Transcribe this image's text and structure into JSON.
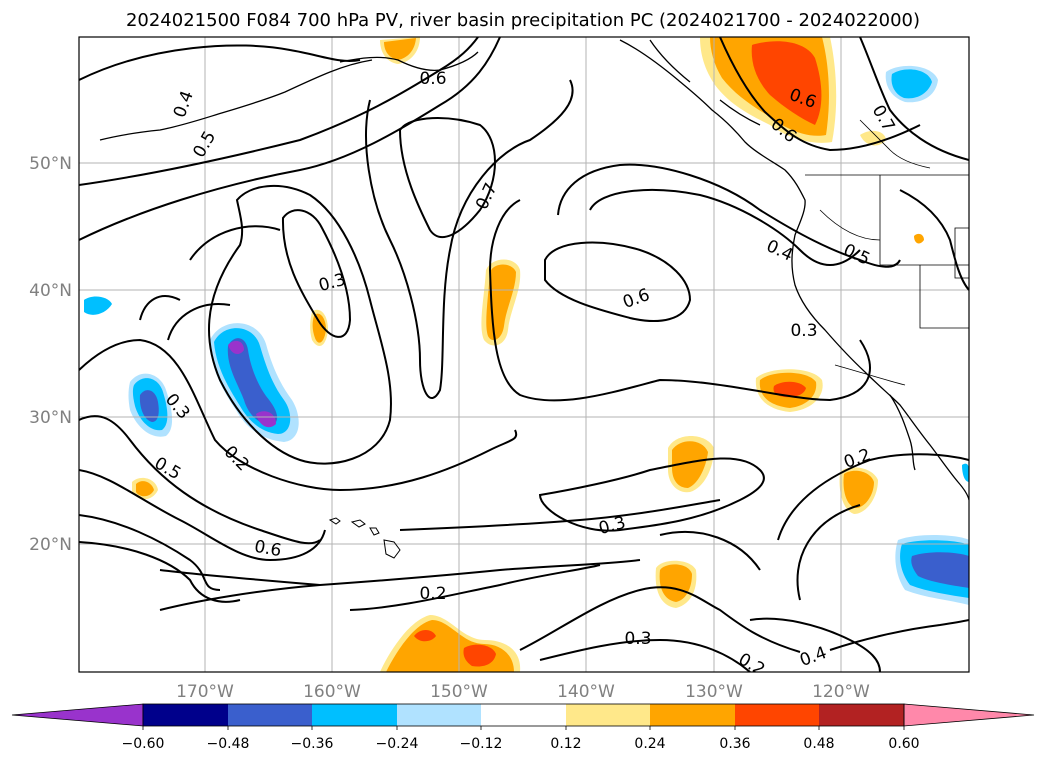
{
  "title": "2024021500 F084 700 hPa PV, river basin precipitation PC (2024021700 - 2024022000)",
  "map": {
    "lat_labels": [
      "50°N",
      "40°N",
      "30°N",
      "20°N"
    ],
    "lon_labels": [
      "170°W",
      "160°W",
      "150°W",
      "140°W",
      "130°W",
      "120°W"
    ],
    "contour_labels": [
      {
        "text": "0.6"
      },
      {
        "text": "0.4"
      },
      {
        "text": "0.5"
      },
      {
        "text": "0.7"
      },
      {
        "text": "0.6"
      },
      {
        "text": "0.6"
      },
      {
        "text": "0.7"
      },
      {
        "text": "0.4"
      },
      {
        "text": "0.5"
      },
      {
        "text": "0.3"
      },
      {
        "text": "0.6"
      },
      {
        "text": "0.3"
      },
      {
        "text": "0.3"
      },
      {
        "text": "0.2"
      },
      {
        "text": "0.5"
      },
      {
        "text": "0.2"
      },
      {
        "text": "0.3"
      },
      {
        "text": "0.6"
      },
      {
        "text": "0.2"
      },
      {
        "text": "0.3"
      },
      {
        "text": "0.4"
      },
      {
        "text": "0.2"
      }
    ]
  },
  "colorbar": {
    "ticks": [
      "−0.60",
      "−0.48",
      "−0.36",
      "−0.24",
      "−0.12",
      "0.12",
      "0.24",
      "0.36",
      "0.48",
      "0.60"
    ],
    "colors": [
      "#9933cc",
      "#00008b",
      "#3a5fcd",
      "#00bfff",
      "#b0e2ff",
      "#ffffff",
      "#ffe88a",
      "#ffa500",
      "#ff4500",
      "#b22222",
      "#ff88aa"
    ]
  },
  "fill_colors": {
    "pos1": "#ffe88a",
    "pos2": "#ffa500",
    "pos3": "#ff4500",
    "neg1": "#b0e2ff",
    "neg2": "#00bfff",
    "neg3": "#3a5fcd",
    "neg4": "#9933cc"
  }
}
